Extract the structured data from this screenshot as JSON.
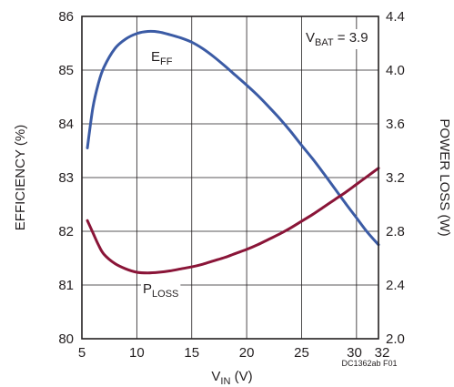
{
  "chart_data": {
    "type": "line",
    "xlabel": {
      "main": "V",
      "sub": "IN",
      "rest": " (V)"
    },
    "ylabel_left": "EFFICIENCY (%)",
    "ylabel_right": "POWER LOSS (W)",
    "xlim": [
      5,
      32
    ],
    "ylim_left": [
      80,
      86
    ],
    "ylim_right": [
      2.0,
      4.4
    ],
    "x_ticks": [
      5,
      10,
      15,
      20,
      25,
      30,
      32
    ],
    "x_tick_labels": [
      "5",
      "10",
      "15",
      "20",
      "25",
      "30",
      "32"
    ],
    "y_left_ticks": [
      80,
      81,
      82,
      83,
      84,
      85,
      86
    ],
    "y_left_tick_labels": [
      "80",
      "81",
      "82",
      "83",
      "84",
      "85",
      "86"
    ],
    "y_right_ticks": [
      2.0,
      2.4,
      2.8,
      3.2,
      3.6,
      4.0,
      4.4
    ],
    "y_right_tick_labels": [
      "2.0",
      "2.4",
      "2.8",
      "3.2",
      "3.6",
      "4.0",
      "4.4"
    ],
    "grid": true,
    "annotation": {
      "main": "V",
      "sub": "BAT",
      "rest": " = 3.9"
    },
    "footnote": "DC1362ab F01",
    "series": [
      {
        "name": {
          "main": "E",
          "sub": "FF"
        },
        "axis": "left",
        "color": "#3b5ba5",
        "x": [
          5.5,
          6,
          6.5,
          7,
          8,
          9,
          10,
          11,
          12,
          13,
          14,
          15,
          16,
          17,
          18,
          19,
          20,
          21,
          22,
          23,
          24,
          25,
          26,
          27,
          28,
          29,
          30,
          31,
          32
        ],
        "y": [
          83.55,
          84.3,
          84.75,
          85.05,
          85.4,
          85.58,
          85.68,
          85.72,
          85.71,
          85.66,
          85.6,
          85.52,
          85.4,
          85.25,
          85.08,
          84.9,
          84.72,
          84.53,
          84.32,
          84.1,
          83.86,
          83.6,
          83.35,
          83.08,
          82.8,
          82.52,
          82.25,
          81.98,
          81.75
        ]
      },
      {
        "name": {
          "main": "P",
          "sub": "LOSS"
        },
        "axis": "right",
        "color": "#8a1538",
        "x": [
          5.5,
          6,
          6.5,
          7,
          8,
          9,
          10,
          11,
          12,
          13,
          14,
          15,
          16,
          17,
          18,
          19,
          20,
          21,
          22,
          23,
          24,
          25,
          26,
          27,
          28,
          29,
          30,
          31,
          32
        ],
        "y": [
          2.88,
          2.79,
          2.7,
          2.63,
          2.56,
          2.52,
          2.495,
          2.49,
          2.495,
          2.505,
          2.52,
          2.535,
          2.555,
          2.58,
          2.605,
          2.635,
          2.665,
          2.7,
          2.74,
          2.78,
          2.825,
          2.875,
          2.925,
          2.98,
          3.035,
          3.09,
          3.15,
          3.21,
          3.27
        ]
      }
    ]
  }
}
